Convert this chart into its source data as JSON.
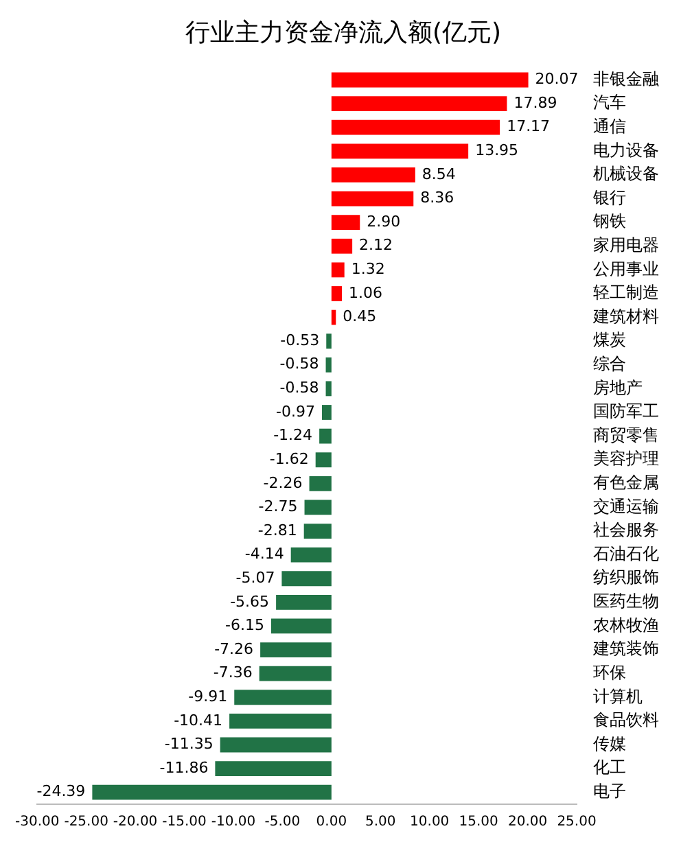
{
  "chart_data": {
    "type": "bar",
    "orientation": "horizontal",
    "title": "行业主力资金净流入额(亿元)",
    "categories": [
      "非银金融",
      "汽车",
      "通信",
      "电力设备",
      "机械设备",
      "银行",
      "钢铁",
      "家用电器",
      "公用事业",
      "轻工制造",
      "建筑材料",
      "煤炭",
      "综合",
      "房地产",
      "国防军工",
      "商贸零售",
      "美容护理",
      "有色金属",
      "交通运输",
      "社会服务",
      "石油石化",
      "纺织服饰",
      "医药生物",
      "农林牧渔",
      "建筑装饰",
      "环保",
      "计算机",
      "食品饮料",
      "传媒",
      "化工",
      "电子"
    ],
    "values": [
      20.07,
      17.89,
      17.17,
      13.95,
      8.54,
      8.36,
      2.9,
      2.12,
      1.32,
      1.06,
      0.45,
      -0.53,
      -0.58,
      -0.58,
      -0.97,
      -1.24,
      -1.62,
      -2.26,
      -2.75,
      -2.81,
      -4.14,
      -5.07,
      -5.65,
      -6.15,
      -7.26,
      -7.36,
      -9.91,
      -10.41,
      -11.35,
      -11.86,
      -24.39
    ],
    "value_labels": [
      "20.07",
      "17.89",
      "17.17",
      "13.95",
      "8.54",
      "8.36",
      "2.90",
      "2.12",
      "1.32",
      "1.06",
      "0.45",
      "-0.53",
      "-0.58",
      "-0.58",
      "-0.97",
      "-1.24",
      "-1.62",
      "-2.26",
      "-2.75",
      "-2.81",
      "-4.14",
      "-5.07",
      "-5.65",
      "-6.15",
      "-7.26",
      "-7.36",
      "-9.91",
      "-10.41",
      "-11.35",
      "-11.86",
      "-24.39"
    ],
    "colors": [
      "#ff0000",
      "#ff0000",
      "#ff0000",
      "#ff0000",
      "#ff0000",
      "#ff0000",
      "#ff0000",
      "#ff0000",
      "#ff0000",
      "#ff0000",
      "#ff0000",
      "#217346",
      "#217346",
      "#217346",
      "#217346",
      "#217346",
      "#217346",
      "#217346",
      "#217346",
      "#217346",
      "#217346",
      "#217346",
      "#217346",
      "#217346",
      "#217346",
      "#217346",
      "#217346",
      "#217346",
      "#217346",
      "#217346",
      "#217346"
    ],
    "xlim": [
      -30,
      25
    ],
    "xticks": [
      {
        "value": -30,
        "label": "-30.00"
      },
      {
        "value": -25,
        "label": "-25.00"
      },
      {
        "value": -20,
        "label": "-20.00"
      },
      {
        "value": -15,
        "label": "-15.00"
      },
      {
        "value": -10,
        "label": "-10.00"
      },
      {
        "value": -5,
        "label": "-5.00"
      },
      {
        "value": 0,
        "label": "0.00"
      },
      {
        "value": 5,
        "label": "5.00"
      },
      {
        "value": 10,
        "label": "10.00"
      },
      {
        "value": 15,
        "label": "15.00"
      },
      {
        "value": 20,
        "label": "20.00"
      },
      {
        "value": 25,
        "label": "25.00"
      }
    ],
    "grid": false,
    "legend": false
  }
}
